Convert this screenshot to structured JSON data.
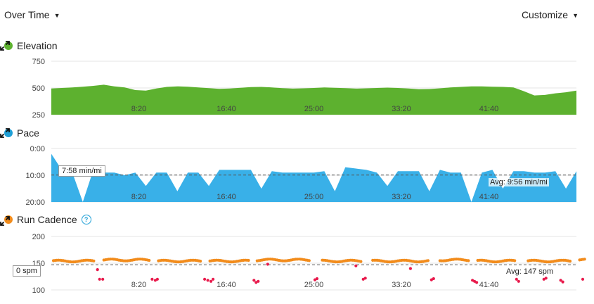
{
  "header": {
    "over_time_label": "Over Time",
    "customize_label": "Customize"
  },
  "colors": {
    "elevation": "#5db12f",
    "pace": "#39b0e8",
    "cadence_orange": "#f28c1c",
    "cadence_red": "#e8194b",
    "grid": "#e6e6e6",
    "avg_line": "#555555"
  },
  "chart_data": [
    {
      "type": "area",
      "title": "Elevation",
      "y_ticks": [
        "750",
        "500",
        "250"
      ],
      "ylim": [
        250,
        750
      ],
      "x_ticks": [
        "8:20",
        "16:40",
        "25:00",
        "33:20",
        "41:40"
      ],
      "x": [
        0,
        1,
        2,
        3,
        4,
        5,
        6,
        7,
        8,
        9,
        10,
        11,
        12,
        13,
        14,
        15,
        16,
        17,
        18,
        19,
        20,
        21,
        22,
        23,
        24,
        25,
        26,
        27,
        28,
        29,
        30,
        31,
        32,
        33,
        34,
        35,
        36,
        37,
        38,
        39,
        40,
        41,
        42,
        43,
        44,
        45,
        46,
        47,
        48,
        49,
        50
      ],
      "values": [
        495,
        500,
        505,
        512,
        520,
        530,
        515,
        505,
        480,
        475,
        495,
        510,
        515,
        512,
        505,
        498,
        492,
        495,
        502,
        508,
        510,
        505,
        498,
        494,
        497,
        500,
        505,
        502,
        498,
        494,
        497,
        500,
        503,
        500,
        495,
        488,
        490,
        497,
        505,
        510,
        515,
        515,
        512,
        510,
        505,
        470,
        430,
        435,
        450,
        460,
        475
      ]
    },
    {
      "type": "area",
      "title": "Pace",
      "y_ticks": [
        "0:00",
        "10:00",
        "20:00"
      ],
      "ylim": [
        0,
        20
      ],
      "inverted": true,
      "x_ticks": [
        "8:20",
        "16:40",
        "25:00",
        "33:20",
        "41:40"
      ],
      "x": [
        0,
        1,
        2,
        3,
        4,
        5,
        6,
        7,
        8,
        9,
        10,
        11,
        12,
        13,
        14,
        15,
        16,
        17,
        18,
        19,
        20,
        21,
        22,
        23,
        24,
        25,
        26,
        27,
        28,
        29,
        30,
        31,
        32,
        33,
        34,
        35,
        36,
        37,
        38,
        39,
        40,
        41,
        42,
        43,
        44,
        45,
        46,
        47,
        48,
        49,
        50
      ],
      "values": [
        2,
        8,
        9,
        20,
        8,
        9,
        9,
        10,
        9,
        14,
        9,
        9,
        16,
        9,
        9,
        14,
        8,
        8,
        8,
        8,
        15,
        8.5,
        9,
        9,
        9,
        9,
        8.5,
        16,
        7,
        7.5,
        8,
        9,
        14,
        8.5,
        8.5,
        8.5,
        16,
        8,
        9,
        9,
        20,
        9,
        8,
        15,
        8.5,
        8.5,
        9,
        9,
        8.5,
        15,
        8.5
      ],
      "callout": "7:58 min/mi",
      "average_label": "Avg: 9:56 min/mi",
      "average": 9.93
    },
    {
      "type": "scatter",
      "title": "Run Cadence",
      "y_ticks": [
        "200",
        "150",
        "100"
      ],
      "ylim": [
        100,
        200
      ],
      "x_ticks": [
        "8:20",
        "16:40",
        "25:00",
        "33:20",
        "41:40"
      ],
      "callout": "0 spm",
      "average_label": "Avg: 147 spm",
      "average": 147,
      "runs": [
        [
          0.2,
          4.1
        ],
        [
          5.0,
          9.4
        ],
        [
          10.2,
          14.3
        ],
        [
          15.1,
          18.9
        ],
        [
          19.6,
          24.7
        ],
        [
          25.8,
          29.6
        ],
        [
          30.6,
          35.9
        ],
        [
          37.0,
          39.8
        ],
        [
          40.6,
          44.2
        ],
        [
          45.4,
          49.5
        ],
        [
          50.3,
          50.9
        ]
      ],
      "red_points": [
        [
          4.4,
          138
        ],
        [
          4.6,
          120
        ],
        [
          4.9,
          120
        ],
        [
          9.6,
          120
        ],
        [
          9.9,
          118
        ],
        [
          10.1,
          120
        ],
        [
          14.6,
          120
        ],
        [
          14.9,
          118
        ],
        [
          15.2,
          116
        ],
        [
          15.4,
          120
        ],
        [
          19.3,
          118
        ],
        [
          19.5,
          114
        ],
        [
          19.7,
          116
        ],
        [
          25.1,
          119
        ],
        [
          25.3,
          121
        ],
        [
          29.7,
          120
        ],
        [
          29.9,
          122
        ],
        [
          34.2,
          140
        ],
        [
          36.2,
          119
        ],
        [
          36.4,
          121
        ],
        [
          40.1,
          118
        ],
        [
          40.3,
          116
        ],
        [
          40.5,
          114
        ],
        [
          44.3,
          120
        ],
        [
          44.5,
          116
        ],
        [
          46.9,
          120
        ],
        [
          47.1,
          122
        ],
        [
          48.5,
          118
        ],
        [
          48.7,
          115
        ],
        [
          50.6,
          120
        ]
      ],
      "red_isolated": [
        [
          29.0,
          145
        ],
        [
          20.6,
          148
        ]
      ]
    }
  ]
}
